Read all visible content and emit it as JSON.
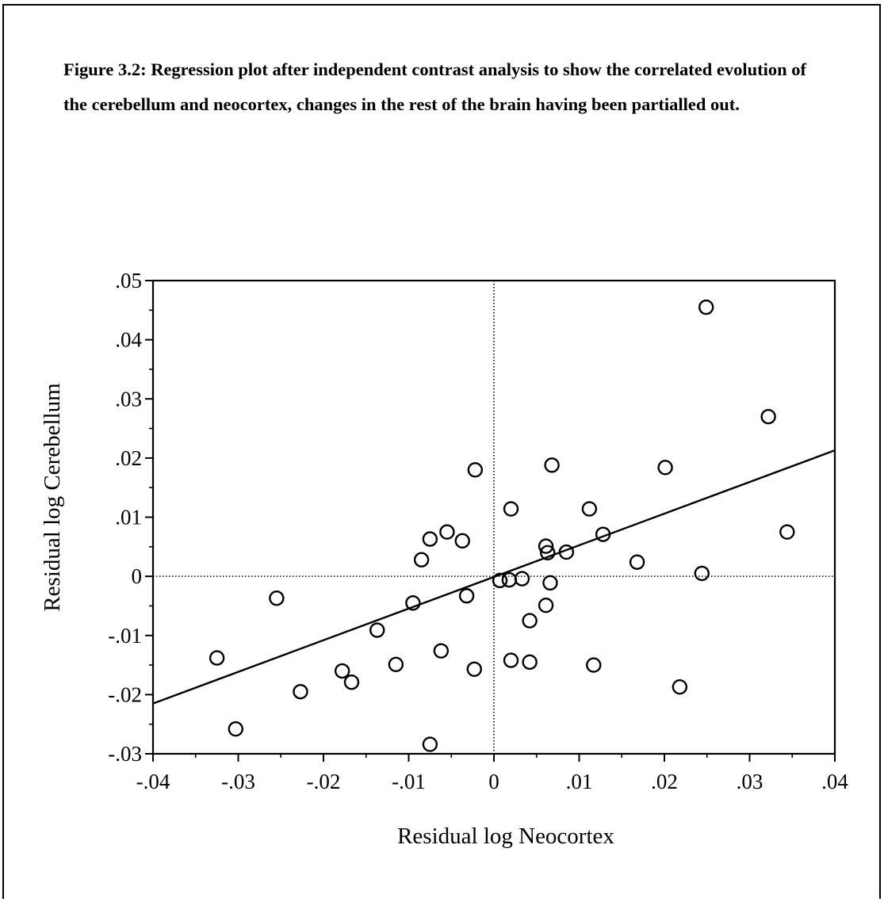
{
  "caption": "Figure 3.2: Regression plot after independent contrast analysis to show the correlated evolution of the cerebellum and neocortex, changes in the rest of the brain having been partialled out.",
  "chart_data": {
    "type": "scatter",
    "xlabel": "Residual log Neocortex",
    "ylabel": "Residual log Cerebellum",
    "xlim": [
      -0.04,
      0.04
    ],
    "ylim": [
      -0.03,
      0.05
    ],
    "x_ticks": [
      -0.04,
      -0.03,
      -0.02,
      -0.01,
      0,
      0.01,
      0.02,
      0.03,
      0.04
    ],
    "x_tick_labels": [
      "-.04",
      "-.03",
      "-.02",
      "-.01",
      "0",
      ".01",
      ".02",
      ".03",
      ".04"
    ],
    "y_ticks": [
      -0.03,
      -0.02,
      -0.01,
      0,
      0.01,
      0.02,
      0.03,
      0.04,
      0.05
    ],
    "y_tick_labels": [
      "-.03",
      "-.02",
      "-.01",
      "0",
      ".01",
      ".02",
      ".03",
      ".04",
      ".05"
    ],
    "reference_lines": {
      "x": 0,
      "y": 0,
      "style": "dotted"
    },
    "grid": false,
    "regression_line": {
      "x": [
        -0.04,
        0.04
      ],
      "y": [
        -0.0215,
        0.0213
      ]
    },
    "points": [
      {
        "x": -0.0325,
        "y": -0.0138
      },
      {
        "x": -0.0303,
        "y": -0.0258
      },
      {
        "x": -0.0255,
        "y": -0.0037
      },
      {
        "x": -0.0227,
        "y": -0.0195
      },
      {
        "x": -0.0178,
        "y": -0.016
      },
      {
        "x": -0.0167,
        "y": -0.0179
      },
      {
        "x": -0.0137,
        "y": -0.0091
      },
      {
        "x": -0.0115,
        "y": -0.0149
      },
      {
        "x": -0.0095,
        "y": -0.0045
      },
      {
        "x": -0.0085,
        "y": 0.0028
      },
      {
        "x": -0.0075,
        "y": 0.0063
      },
      {
        "x": -0.0075,
        "y": -0.0284
      },
      {
        "x": -0.0062,
        "y": -0.0126
      },
      {
        "x": -0.0055,
        "y": 0.0075
      },
      {
        "x": -0.0037,
        "y": 0.006
      },
      {
        "x": -0.0032,
        "y": -0.0033
      },
      {
        "x": -0.0023,
        "y": -0.0157
      },
      {
        "x": -0.0022,
        "y": 0.018
      },
      {
        "x": 0.0007,
        "y": -0.0007
      },
      {
        "x": 0.0018,
        "y": -0.0006
      },
      {
        "x": 0.002,
        "y": -0.0142
      },
      {
        "x": 0.002,
        "y": 0.0114
      },
      {
        "x": 0.0033,
        "y": -0.0004
      },
      {
        "x": 0.0042,
        "y": -0.0075
      },
      {
        "x": 0.0042,
        "y": -0.0145
      },
      {
        "x": 0.0061,
        "y": -0.0049
      },
      {
        "x": 0.0061,
        "y": 0.0051
      },
      {
        "x": 0.0063,
        "y": 0.004
      },
      {
        "x": 0.0066,
        "y": -0.0011
      },
      {
        "x": 0.0068,
        "y": 0.0188
      },
      {
        "x": 0.0085,
        "y": 0.0041
      },
      {
        "x": 0.0112,
        "y": 0.0114
      },
      {
        "x": 0.0117,
        "y": -0.015
      },
      {
        "x": 0.0128,
        "y": 0.0071
      },
      {
        "x": 0.0168,
        "y": 0.0024
      },
      {
        "x": 0.0201,
        "y": 0.0184
      },
      {
        "x": 0.0218,
        "y": -0.0187
      },
      {
        "x": 0.0244,
        "y": 0.0005
      },
      {
        "x": 0.0249,
        "y": 0.0455
      },
      {
        "x": 0.0322,
        "y": 0.027
      },
      {
        "x": 0.0344,
        "y": 0.0075
      }
    ]
  }
}
